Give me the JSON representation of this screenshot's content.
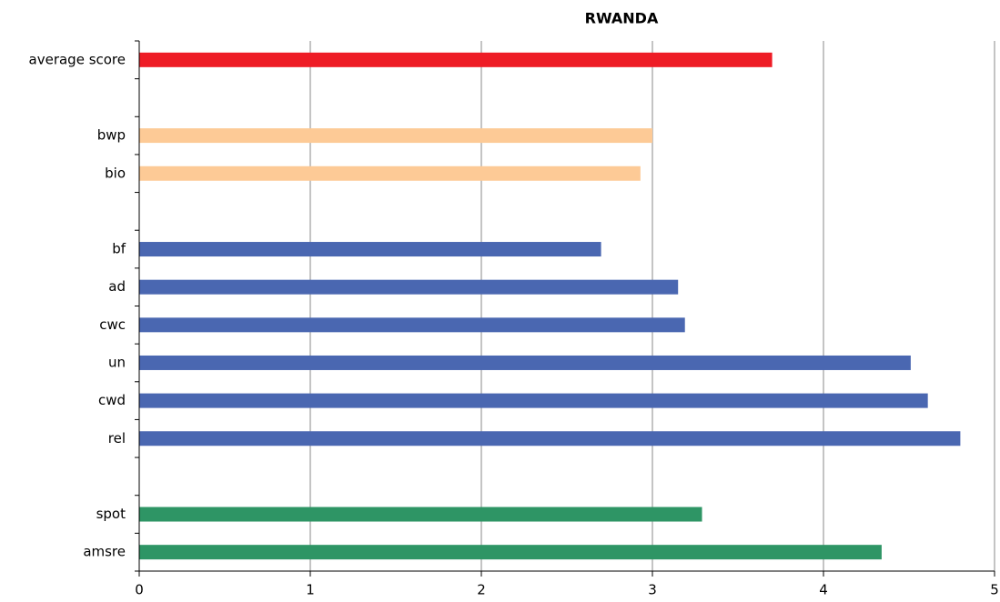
{
  "chart_data": {
    "type": "hbar",
    "title": "RWANDA",
    "categories": [
      "average score",
      null,
      "bwp",
      "bio",
      null,
      "bf",
      "ad",
      "cwc",
      "un",
      "cwd",
      "rel",
      null,
      "spot",
      "amsre"
    ],
    "values": [
      3.7,
      null,
      3.0,
      2.93,
      null,
      2.7,
      3.15,
      3.19,
      4.51,
      4.61,
      4.8,
      null,
      3.29,
      4.34
    ],
    "colors": [
      "#ee1c25",
      null,
      "#fdca96",
      "#fdca96",
      null,
      "#4a67b1",
      "#4a67b1",
      "#4a67b1",
      "#4a67b1",
      "#4a67b1",
      "#4a67b1",
      null,
      "#2e9565",
      "#2e9565"
    ],
    "xlim": [
      0,
      5
    ],
    "xticks": [
      0,
      1,
      2,
      3,
      4,
      5
    ],
    "grid": true
  }
}
